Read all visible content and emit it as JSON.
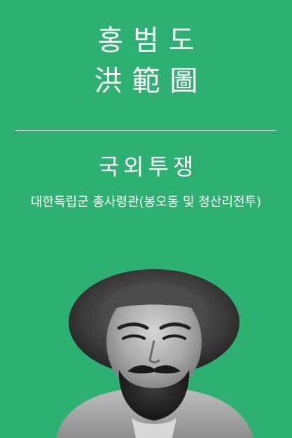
{
  "person": {
    "name_korean": "홍범도",
    "name_hanja": "洪範圖"
  },
  "category": "국외투쟁",
  "subtitle": "대한독립군 총사령관(봉오동 및 청산리전투)",
  "colors": {
    "background": "#2fb073",
    "text": "#ffffff"
  }
}
